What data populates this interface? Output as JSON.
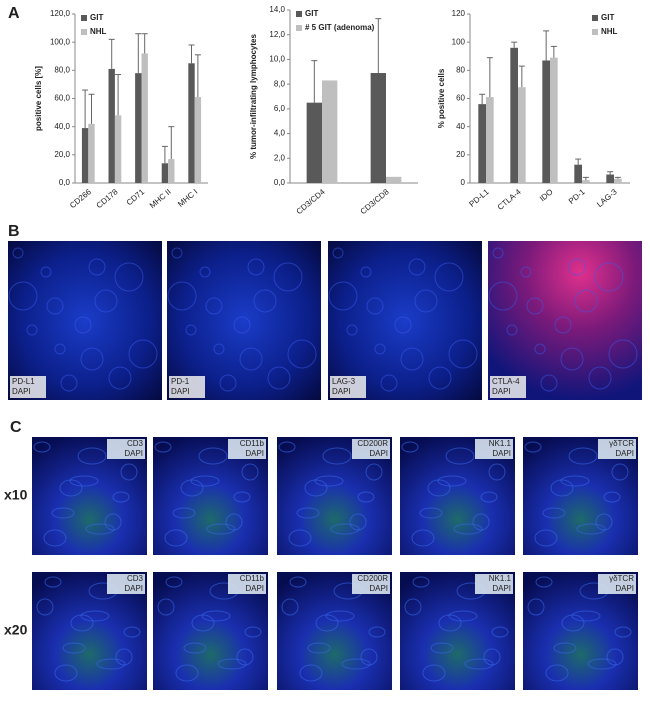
{
  "chart_data": [
    {
      "type": "bar",
      "y_label": "positive cells [%]",
      "categories": [
        "CD266",
        "CD178",
        "CD71",
        "MHC II",
        "MHC I"
      ],
      "series": [
        {
          "name": "GIT",
          "color": "#595959",
          "values": [
            39,
            81,
            78,
            14,
            85
          ],
          "errors": [
            27,
            21,
            28,
            12,
            13
          ]
        },
        {
          "name": "NHL",
          "color": "#bfbfbf",
          "values": [
            42,
            48,
            92,
            17,
            61
          ],
          "errors": [
            21,
            29,
            14,
            23,
            30
          ]
        }
      ],
      "ylim": [
        0,
        120
      ],
      "yticks": [
        {
          "value": 0,
          "label": "0,0"
        },
        {
          "value": 20,
          "label": "20,0"
        },
        {
          "value": 40,
          "label": "40,0"
        },
        {
          "value": 60,
          "label": "60,0"
        },
        {
          "value": 80,
          "label": "80,0"
        },
        {
          "value": 100,
          "label": "100,0"
        },
        {
          "value": 120,
          "label": "120,0"
        }
      ],
      "legend": "upper left"
    },
    {
      "type": "bar",
      "y_label": "% tumor-infiltrating lymphocytes",
      "categories": [
        "CD3/CD4",
        "CD3/CD8"
      ],
      "series": [
        {
          "name": "GIT",
          "color": "#595959",
          "values": [
            6.5,
            8.9
          ],
          "errors": [
            3.4,
            4.4
          ]
        },
        {
          "name": "# 5 GIT (adenoma)",
          "color": "#bfbfbf",
          "values": [
            8.3,
            0.5
          ],
          "errors": [
            null,
            null
          ]
        }
      ],
      "ylim": [
        0,
        14
      ],
      "yticks": [
        {
          "value": 0,
          "label": "0,0"
        },
        {
          "value": 2,
          "label": "2,0"
        },
        {
          "value": 4,
          "label": "4,0"
        },
        {
          "value": 6,
          "label": "6,0"
        },
        {
          "value": 8,
          "label": "8,0"
        },
        {
          "value": 10,
          "label": "10,0"
        },
        {
          "value": 12,
          "label": "12,0"
        },
        {
          "value": 14,
          "label": "14,0"
        }
      ],
      "legend": "upper left"
    },
    {
      "type": "bar",
      "y_label": "% positive cells",
      "categories": [
        "PD-L1",
        "CTLA-4",
        "IDO",
        "PD-1",
        "LAG-3"
      ],
      "series": [
        {
          "name": "GIT",
          "color": "#595959",
          "values": [
            56,
            96,
            87,
            13,
            6
          ],
          "errors": [
            7,
            4,
            21,
            4,
            2
          ]
        },
        {
          "name": "NHL",
          "color": "#bfbfbf",
          "values": [
            61,
            68,
            89,
            2,
            3
          ],
          "errors": [
            28,
            15,
            8,
            2,
            1
          ]
        }
      ],
      "ylim": [
        0,
        120
      ],
      "yticks": [
        0,
        20,
        40,
        60,
        80,
        100,
        120
      ],
      "legend": "upper right"
    }
  ],
  "panel_labels": [
    "A",
    "B",
    "C"
  ],
  "panel_b": {
    "images": [
      {
        "marker": "PD-L1",
        "counterstain": "DAPI"
      },
      {
        "marker": "PD-1",
        "counterstain": "DAPI"
      },
      {
        "marker": "LAG-3",
        "counterstain": "DAPI"
      },
      {
        "marker": "CTLA-4",
        "counterstain": "DAPI"
      }
    ]
  },
  "panel_c": {
    "rows": [
      {
        "label": "x10",
        "images": [
          {
            "marker": "CD3",
            "counterstain": "DAPI"
          },
          {
            "marker": "CD11b",
            "counterstain": "DAPI"
          },
          {
            "marker": "CD200R",
            "counterstain": "DAPI"
          },
          {
            "marker": "NK1.1",
            "counterstain": "DAPI"
          },
          {
            "marker": "γδTCR",
            "counterstain": "DAPI"
          }
        ]
      },
      {
        "label": "x20",
        "images": [
          {
            "marker": "CD3",
            "counterstain": "DAPI"
          },
          {
            "marker": "CD11b",
            "counterstain": "DAPI"
          },
          {
            "marker": "CD200R",
            "counterstain": "DAPI"
          },
          {
            "marker": "NK1.1",
            "counterstain": "DAPI"
          },
          {
            "marker": "γδTCR",
            "counterstain": "DAPI"
          }
        ]
      }
    ]
  }
}
